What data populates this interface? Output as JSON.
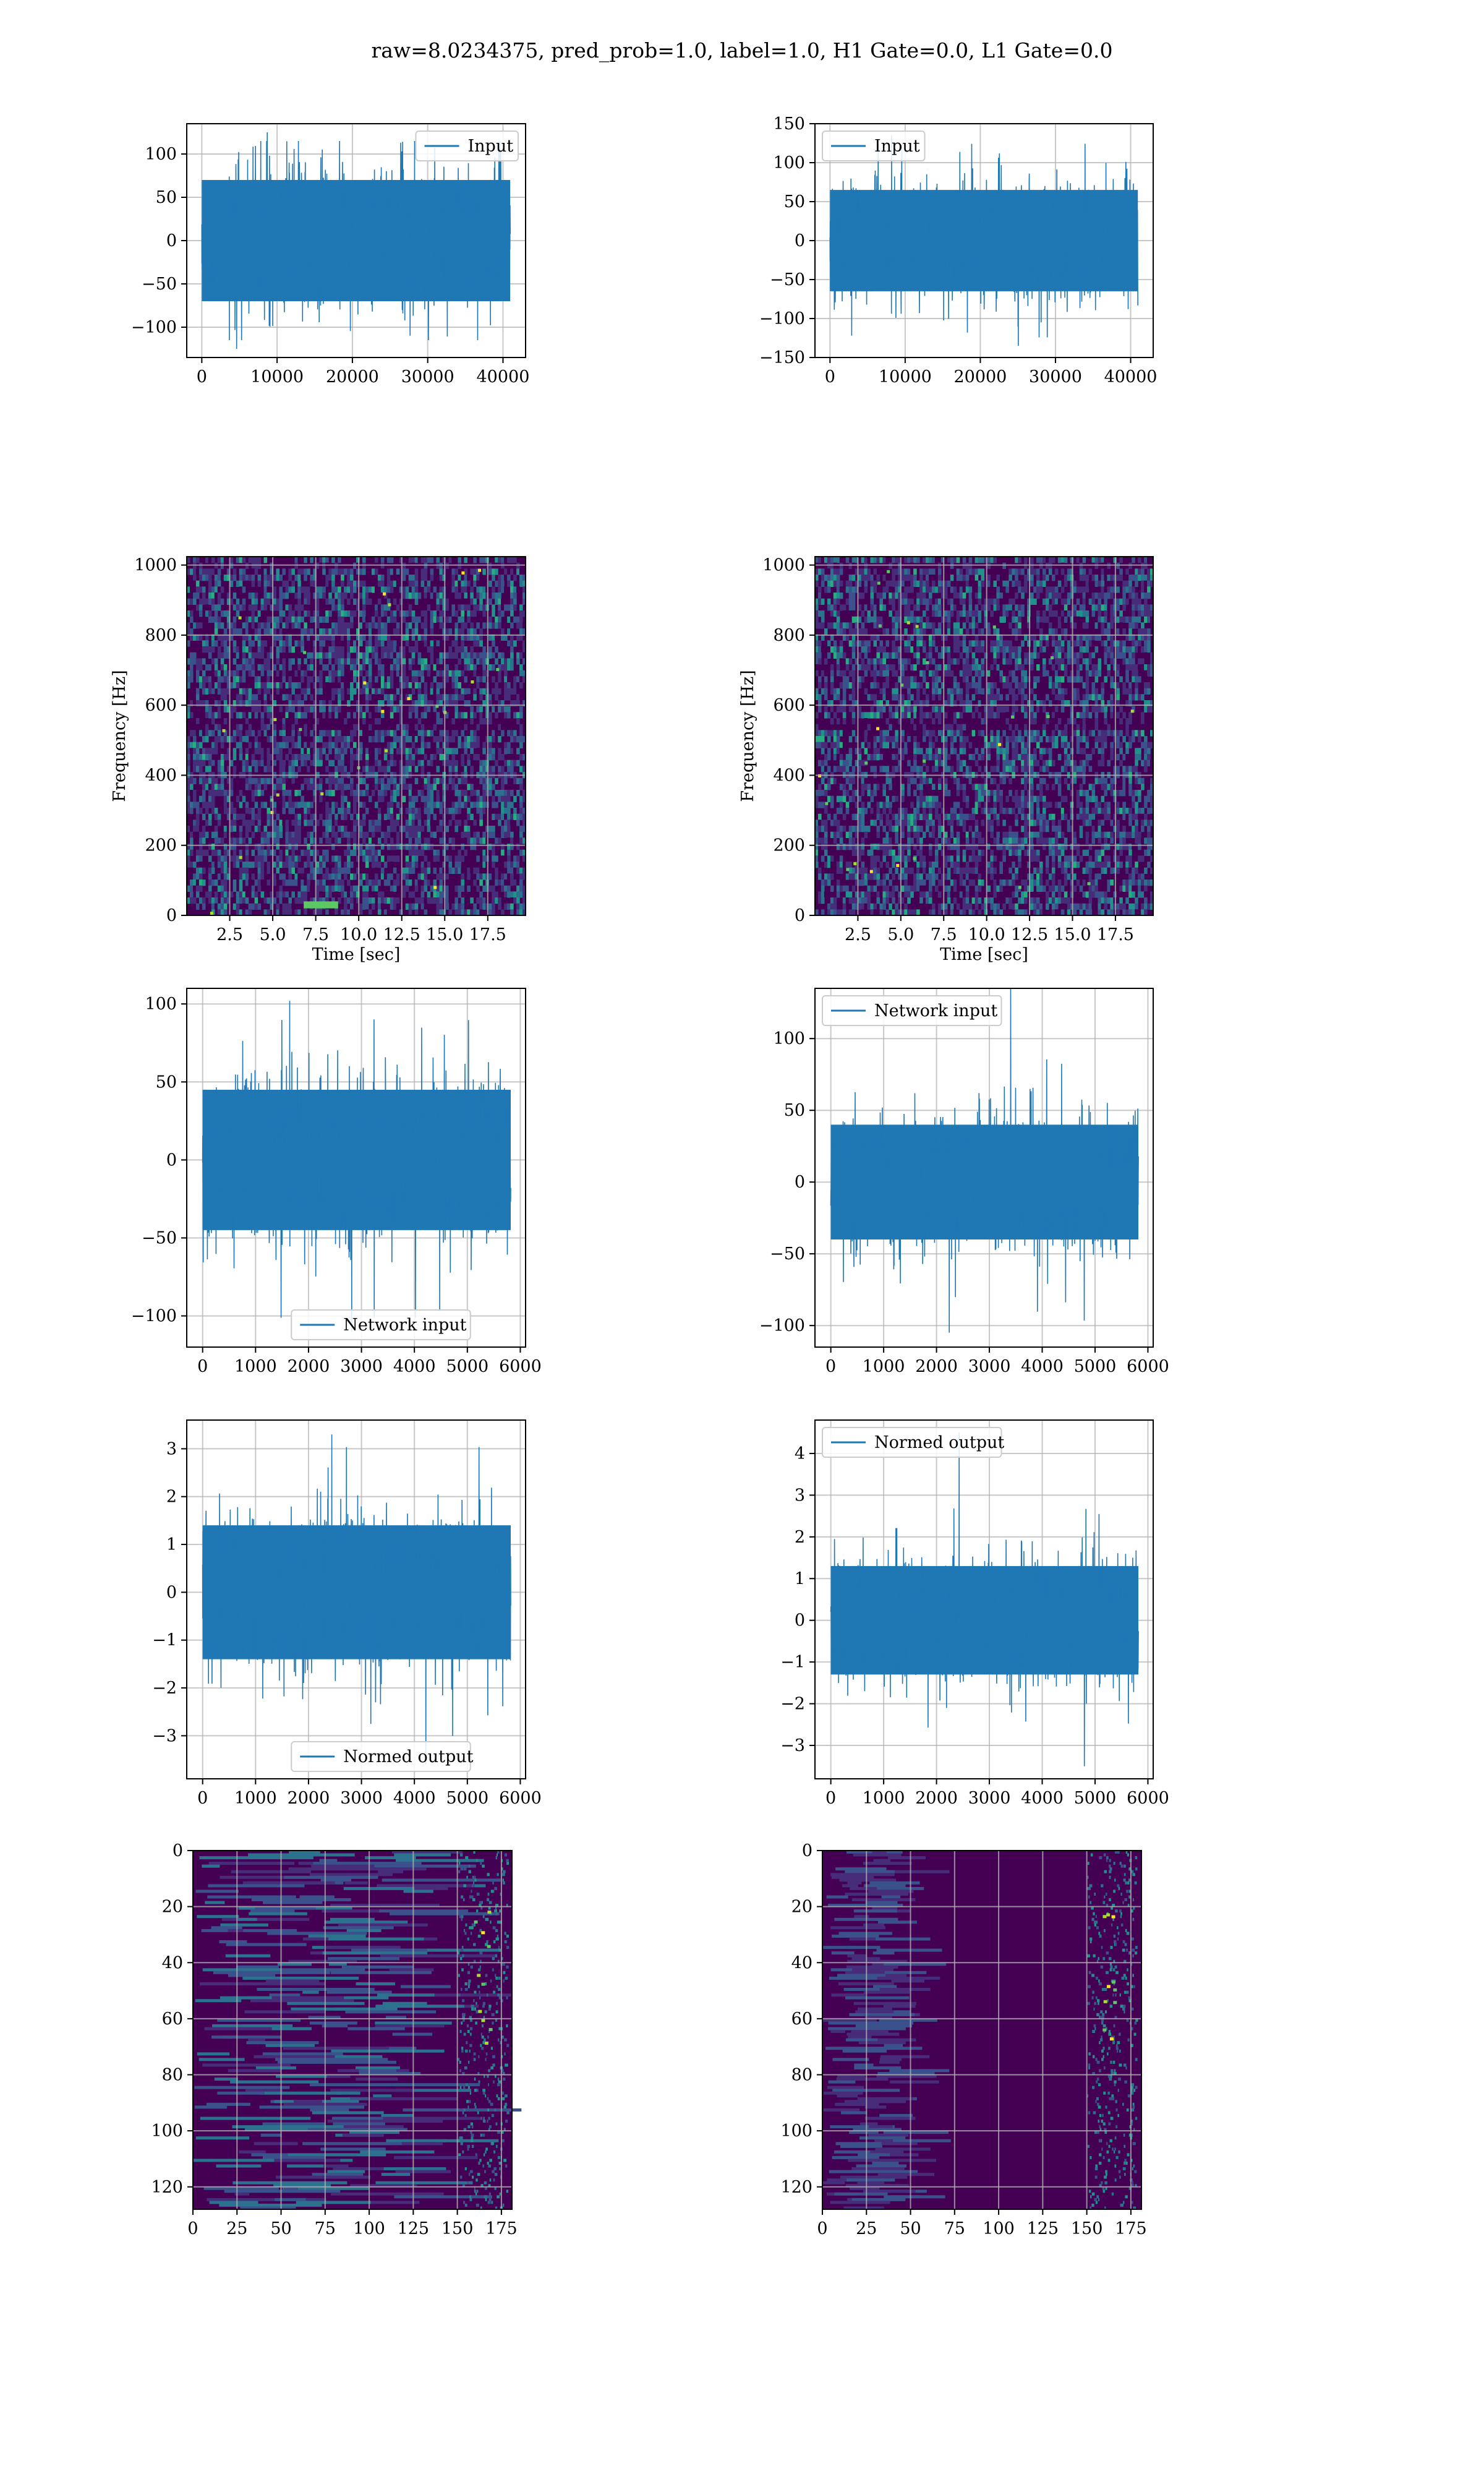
{
  "figure": {
    "suptitle": "raw=8.0234375, pred_prob=1.0, label=1.0, H1 Gate=0.0, L1 Gate=0.0",
    "colors": {
      "line": "#1f77b4",
      "grid": "#b0b0b0",
      "viridis_dark": "#440154"
    }
  },
  "chart_data": [
    {
      "type": "line",
      "panel": "row1-left",
      "series": [
        {
          "name": "Input"
        }
      ],
      "x": [
        0,
        40960
      ],
      "xlim": [
        -2000,
        43000
      ],
      "ylim": [
        -135,
        135
      ],
      "xticks": [
        0,
        10000,
        20000,
        30000,
        40000
      ],
      "yticks": [
        -100,
        -50,
        0,
        50,
        100
      ],
      "envelope": {
        "core": [
          -70,
          70
        ],
        "min": -125,
        "max": 125
      },
      "legend": "upper right",
      "grid": true
    },
    {
      "type": "line",
      "panel": "row1-right",
      "series": [
        {
          "name": "Input"
        }
      ],
      "x": [
        0,
        40960
      ],
      "xlim": [
        -2000,
        43000
      ],
      "ylim": [
        -150,
        150
      ],
      "xticks": [
        0,
        10000,
        20000,
        30000,
        40000
      ],
      "yticks": [
        -150,
        -100,
        -50,
        0,
        50,
        100,
        150
      ],
      "envelope": {
        "core": [
          -65,
          65
        ],
        "min": -135,
        "max": 135
      },
      "legend": "upper left",
      "grid": true
    },
    {
      "type": "heatmap",
      "panel": "row2-left",
      "xlabel": "Time [sec]",
      "ylabel": "Frequency [Hz]",
      "xlim": [
        0,
        19.7
      ],
      "ylim": [
        0,
        1024
      ],
      "xticks": [
        2.5,
        5.0,
        7.5,
        10.0,
        12.5,
        15.0,
        17.5
      ],
      "yticks": [
        0,
        200,
        400,
        600,
        800,
        1000
      ],
      "colormap": "viridis",
      "features": [
        {
          "note_free": true,
          "x": [
            6.8,
            8.8
          ],
          "y": [
            20,
            40
          ]
        }
      ],
      "grid": true
    },
    {
      "type": "heatmap",
      "panel": "row2-right",
      "xlabel": "Time [sec]",
      "ylabel": "Frequency [Hz]",
      "xlim": [
        0,
        19.7
      ],
      "ylim": [
        0,
        1024
      ],
      "xticks": [
        2.5,
        5.0,
        7.5,
        10.0,
        12.5,
        15.0,
        17.5
      ],
      "yticks": [
        0,
        200,
        400,
        600,
        800,
        1000
      ],
      "colormap": "viridis",
      "grid": true
    },
    {
      "type": "line",
      "panel": "row3-left",
      "series": [
        {
          "name": "Network input"
        }
      ],
      "x": [
        0,
        5820
      ],
      "xlim": [
        -300,
        6100
      ],
      "ylim": [
        -120,
        110
      ],
      "xticks": [
        0,
        1000,
        2000,
        3000,
        4000,
        5000,
        6000
      ],
      "yticks": [
        -100,
        -50,
        0,
        50,
        100
      ],
      "envelope": {
        "core": [
          -45,
          45
        ],
        "min": -110,
        "max": 102
      },
      "legend": "lower center",
      "grid": true
    },
    {
      "type": "line",
      "panel": "row3-right",
      "series": [
        {
          "name": "Network input"
        }
      ],
      "x": [
        0,
        5820
      ],
      "xlim": [
        -300,
        6100
      ],
      "ylim": [
        -115,
        135
      ],
      "xticks": [
        0,
        1000,
        2000,
        3000,
        4000,
        5000,
        6000
      ],
      "yticks": [
        -100,
        -50,
        0,
        50,
        100
      ],
      "envelope": {
        "core": [
          -40,
          40
        ],
        "min": -105,
        "max": 135
      },
      "legend": "upper left",
      "grid": true
    },
    {
      "type": "line",
      "panel": "row4-left",
      "series": [
        {
          "name": "Normed output"
        }
      ],
      "x": [
        0,
        5820
      ],
      "xlim": [
        -300,
        6100
      ],
      "ylim": [
        -3.9,
        3.6
      ],
      "xticks": [
        0,
        1000,
        2000,
        3000,
        4000,
        5000,
        6000
      ],
      "yticks": [
        -3,
        -2,
        -1,
        0,
        1,
        2,
        3
      ],
      "envelope": {
        "core": [
          -1.4,
          1.4
        ],
        "min": -3.6,
        "max": 3.3
      },
      "legend": "lower center",
      "grid": true
    },
    {
      "type": "line",
      "panel": "row4-right",
      "series": [
        {
          "name": "Normed output"
        }
      ],
      "x": [
        0,
        5820
      ],
      "xlim": [
        -300,
        6100
      ],
      "ylim": [
        -3.8,
        4.8
      ],
      "xticks": [
        0,
        1000,
        2000,
        3000,
        4000,
        5000,
        6000
      ],
      "yticks": [
        -3,
        -2,
        -1,
        0,
        1,
        2,
        3,
        4
      ],
      "envelope": {
        "core": [
          -1.3,
          1.3
        ],
        "min": -3.5,
        "max": 4.5
      },
      "legend": "upper left",
      "grid": true
    },
    {
      "type": "heatmap",
      "panel": "row5-left",
      "xlim": [
        0,
        181
      ],
      "ylim": [
        128,
        0
      ],
      "xticks": [
        0,
        25,
        50,
        75,
        100,
        125,
        150,
        175
      ],
      "yticks": [
        0,
        20,
        40,
        60,
        80,
        100,
        120
      ],
      "colormap": "viridis",
      "grid": true
    },
    {
      "type": "heatmap",
      "panel": "row5-right",
      "xlim": [
        0,
        181
      ],
      "ylim": [
        128,
        0
      ],
      "xticks": [
        0,
        25,
        50,
        75,
        100,
        125,
        150,
        175
      ],
      "yticks": [
        0,
        20,
        40,
        60,
        80,
        100,
        120
      ],
      "colormap": "viridis",
      "grid": true
    }
  ]
}
